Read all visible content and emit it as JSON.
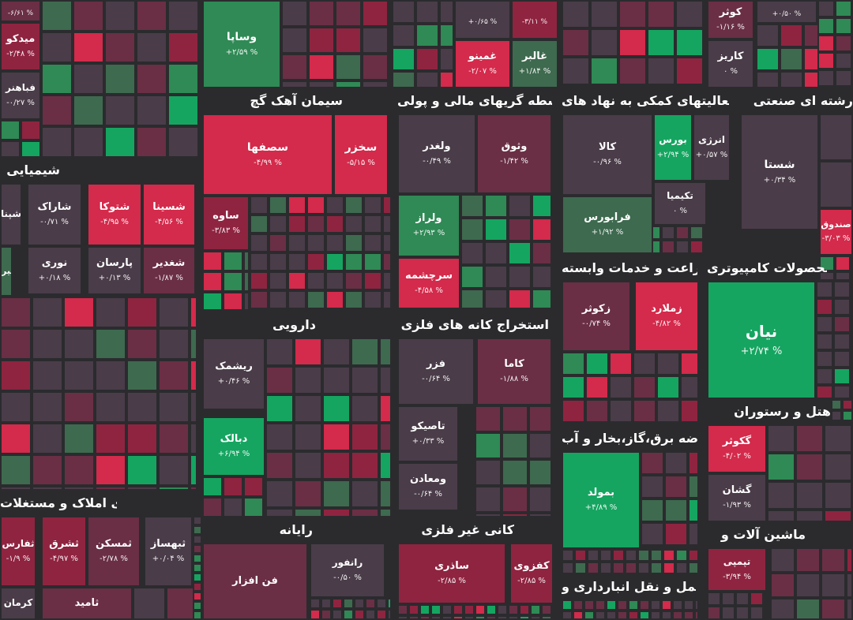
{
  "colors": {
    "background": "#2b2b2e",
    "up_strong": "#15a560",
    "up_mid": "#2f8a55",
    "up_weak": "#3e6a4f",
    "neutral": "#4a3c49",
    "down_weak": "#6a2f45",
    "down_mid": "#8f2440",
    "down_strong": "#d42a4b"
  },
  "legend": {
    "pct_suffix": "%"
  },
  "chart_data": {
    "type": "treemap",
    "sectors": [
      {
        "name": "شیمیایی"
      },
      {
        "name": "سیمان آهک گچ"
      },
      {
        "name": "واسطه گریهای مالی و پولی"
      },
      {
        "name": "فعالیتهای کمکی به نهاد های"
      },
      {
        "name": "رشته ای صنعتی"
      },
      {
        "name": "محصولات کامپیوتری"
      },
      {
        "name": "زراعت و خدمات وابسته"
      },
      {
        "name": "دارویی"
      },
      {
        "name": "استخراج کانه های فلزی"
      },
      {
        "name": "عرضه برق،گاز،بخار و آب"
      },
      {
        "name": "هتل و رستوران"
      },
      {
        "name": "انبوه سازی املاک و مستغلات"
      },
      {
        "name": "رایانه"
      },
      {
        "name": "کانی غیر فلزی"
      },
      {
        "name": "ماشین آلات و"
      },
      {
        "name": "حمل و نقل انبارداری و"
      }
    ],
    "tiles": [
      {
        "symbol": "وساپا",
        "change": "+2.59",
        "label": "+۲/۵۹ %",
        "color": "#2f8a55"
      },
      {
        "symbol": "میدکو",
        "change": "-2.48",
        "label": "-۲/۴۸ %",
        "color": "#8f2440"
      },
      {
        "symbol": "فباهنر",
        "change": "-0.27",
        "label": "-۰/۲۷ %",
        "color": "#4a3c49"
      },
      {
        "symbol": "",
        "change": "-6.61",
        "label": "-۶/۶۱ %",
        "color": "#6a2f45"
      },
      {
        "symbol": "غمینو",
        "change": "-2.07",
        "label": "-۲/۰۷ %",
        "color": "#d42a4b"
      },
      {
        "symbol": "غالبر",
        "change": "+1.84",
        "label": "+۱/۸۴ %",
        "color": "#3e6a4f"
      },
      {
        "symbol": "",
        "change": "+0.65",
        "label": "+۰/۶۵ %",
        "color": "#4a3c49"
      },
      {
        "symbol": "",
        "change": "-3.11",
        "label": "-۳/۱۱ %",
        "color": "#8f2440"
      },
      {
        "symbol": "کوثر",
        "change": "-1.16",
        "label": "-۱/۱۶ %",
        "color": "#6a2f45"
      },
      {
        "symbol": "کاریز",
        "change": "0",
        "label": "۰ %",
        "color": "#4a3c49"
      },
      {
        "symbol": "",
        "change": "+0.50",
        "label": "+۰/۵۰ %",
        "color": "#4a3c49"
      },
      {
        "symbol": "سصفها",
        "change": "-4.99",
        "label": "-۴/۹۹ %",
        "color": "#d42a4b"
      },
      {
        "symbol": "سخزر",
        "change": "-5.15",
        "label": "-۵/۱۵ %",
        "color": "#d42a4b"
      },
      {
        "symbol": "ساوه",
        "change": "-3.83",
        "label": "-۳/۸۳ %",
        "color": "#8f2440"
      },
      {
        "symbol": "ولغدر",
        "change": "-0.49",
        "label": "-۰/۴۹ %",
        "color": "#4a3c49"
      },
      {
        "symbol": "وثوق",
        "change": "-1.42",
        "label": "-۱/۴۲ %",
        "color": "#6a2f45"
      },
      {
        "symbol": "ولراز",
        "change": "+2.93",
        "label": "+۲/۹۳ %",
        "color": "#2f8a55"
      },
      {
        "symbol": "سرچشمه",
        "change": "-4.58",
        "label": "-۴/۵۸ %",
        "color": "#d42a4b"
      },
      {
        "symbol": "کالا",
        "change": "-0.96",
        "label": "-۰/۹۶ %",
        "color": "#4a3c49"
      },
      {
        "symbol": "بورس",
        "change": "+2.94",
        "label": "+۲/۹۴ %",
        "color": "#15a560"
      },
      {
        "symbol": "انرژی",
        "change": "+0.57",
        "label": "+۰/۵۷ %",
        "color": "#4a3c49"
      },
      {
        "symbol": "فرابورس",
        "change": "+1.92",
        "label": "+۱/۹۲ %",
        "color": "#3e6a4f"
      },
      {
        "symbol": "تکیمیا",
        "change": "0",
        "label": "۰ %",
        "color": "#4a3c49"
      },
      {
        "symbol": "شستا",
        "change": "+0.34",
        "label": "+۰/۳۴ %",
        "color": "#4a3c49"
      },
      {
        "symbol": "",
        "change": "",
        "label": "",
        "color": "#4a3c49"
      },
      {
        "symbol": "",
        "change": "",
        "label": "",
        "color": "#4a3c49"
      },
      {
        "symbol": "صندوق",
        "change": "-3.03",
        "label": "-۳/۰۳ %",
        "color": "#d42a4b"
      },
      {
        "symbol": "شپنا",
        "change": "",
        "label": "",
        "color": "#4a3c49"
      },
      {
        "symbol": "شاراک",
        "change": "-0.71",
        "label": "-۰/۷۱ %",
        "color": "#4a3c49"
      },
      {
        "symbol": "شتوکا",
        "change": "-4.95",
        "label": "-۴/۹۵ %",
        "color": "#d42a4b"
      },
      {
        "symbol": "شسینا",
        "change": "-4.56",
        "label": "-۴/۵۶ %",
        "color": "#d42a4b"
      },
      {
        "symbol": "شیراز",
        "change": "",
        "label": "",
        "color": "#3e6a4f"
      },
      {
        "symbol": "نوری",
        "change": "+0.18",
        "label": "+۰/۱۸ %",
        "color": "#4a3c49"
      },
      {
        "symbol": "پارسان",
        "change": "+0.13",
        "label": "+۰/۱۳ %",
        "color": "#4a3c49"
      },
      {
        "symbol": "شغدیر",
        "change": "-1.87",
        "label": "-۱/۸۷ %",
        "color": "#6a2f45"
      },
      {
        "symbol": "نیان",
        "change": "+2.74",
        "label": "+۲/۷۴ %",
        "color": "#15a560"
      },
      {
        "symbol": "زکوثر",
        "change": "-0.74",
        "label": "-۰/۷۴ %",
        "color": "#6a2f45"
      },
      {
        "symbol": "زملارد",
        "change": "-4.82",
        "label": "-۴/۸۲ %",
        "color": "#d42a4b"
      },
      {
        "symbol": "ریشمک",
        "change": "+0.46",
        "label": "+۰/۴۶ %",
        "color": "#4a3c49"
      },
      {
        "symbol": "دبالک",
        "change": "+6.94",
        "label": "+۶/۹۴ %",
        "color": "#15a560"
      },
      {
        "symbol": "فزر",
        "change": "-0.64",
        "label": "-۰/۶۴ %",
        "color": "#4a3c49"
      },
      {
        "symbol": "کاما",
        "change": "-1.88",
        "label": "-۱/۸۸ %",
        "color": "#6a2f45"
      },
      {
        "symbol": "تاصیکو",
        "change": "+0.33",
        "label": "+۰/۳۳ %",
        "color": "#4a3c49"
      },
      {
        "symbol": "ومعادن",
        "change": "-0.64",
        "label": "-۰/۶۴ %",
        "color": "#4a3c49"
      },
      {
        "symbol": "بمولد",
        "change": "+4.89",
        "label": "+۴/۸۹ %",
        "color": "#15a560"
      },
      {
        "symbol": "گکوثر",
        "change": "-4.02",
        "label": "-۴/۰۲ %",
        "color": "#d42a4b"
      },
      {
        "symbol": "گشان",
        "change": "-1.93",
        "label": "-۱/۹۳ %",
        "color": "#4a3c49"
      },
      {
        "symbol": "ثفارس",
        "change": "-1.9",
        "label": "-۱/۹ %",
        "color": "#8f2440"
      },
      {
        "symbol": "ثشرق",
        "change": "-4.97",
        "label": "-۴/۹۷ %",
        "color": "#8f2440"
      },
      {
        "symbol": "ثمسکن",
        "change": "-2.78",
        "label": "-۲/۷۸ %",
        "color": "#6a2f45"
      },
      {
        "symbol": "ثبهساز",
        "change": "+0.04",
        "label": "+۰/۰۴ %",
        "color": "#4a3c49"
      },
      {
        "symbol": "کرمان",
        "change": "",
        "label": "",
        "color": "#4a3c49"
      },
      {
        "symbol": "ثامید",
        "change": "",
        "label": "",
        "color": "#6a2f45"
      },
      {
        "symbol": "رانفور",
        "change": "-0.50",
        "label": "-۰/۵۰ %",
        "color": "#4a3c49"
      },
      {
        "symbol": "فن افزار",
        "change": "",
        "label": "",
        "color": "#6a2f45"
      },
      {
        "symbol": "ساذری",
        "change": "-2.85",
        "label": "-۲/۸۵ %",
        "color": "#8f2440"
      },
      {
        "symbol": "کفزوی",
        "change": "-2.85",
        "label": "-۲/۸۵ %",
        "color": "#8f2440"
      },
      {
        "symbol": "تپمپی",
        "change": "-3.94",
        "label": "-۳/۹۴ %",
        "color": "#8f2440"
      }
    ]
  }
}
